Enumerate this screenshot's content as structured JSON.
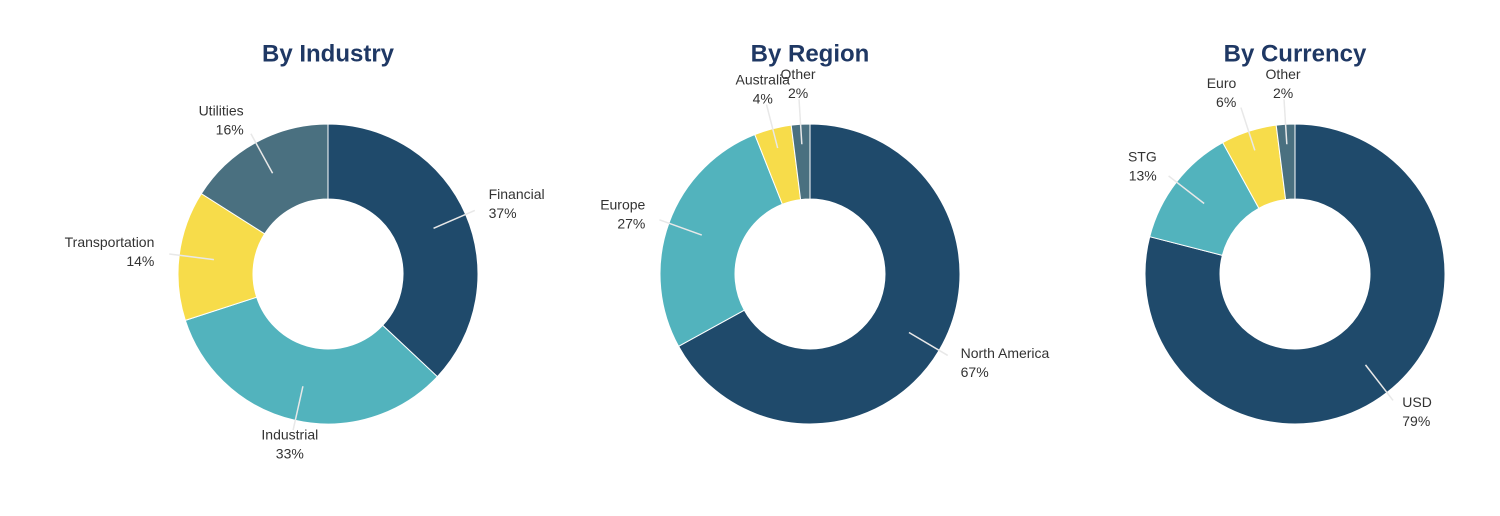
{
  "chart_data": [
    {
      "type": "donut",
      "title": "By Industry",
      "categories": [
        "Financial",
        "Industrial",
        "Transportation",
        "Utilities"
      ],
      "values": [
        37,
        33,
        14,
        16
      ],
      "value_labels": [
        "37%",
        "33%",
        "14%",
        "16%"
      ],
      "colors": [
        "#1f4a6b",
        "#52b3bd",
        "#f7dc4a",
        "#4a7080"
      ]
    },
    {
      "type": "donut",
      "title": "By Region",
      "categories": [
        "North America",
        "Europe",
        "Australia",
        "Other"
      ],
      "values": [
        67,
        27,
        4,
        2
      ],
      "value_labels": [
        "67%",
        "27%",
        "4%",
        "2%"
      ],
      "colors": [
        "#1f4a6b",
        "#52b3bd",
        "#f7dc4a",
        "#4a7080"
      ]
    },
    {
      "type": "donut",
      "title": "By Currency",
      "categories": [
        "USD",
        "STG",
        "Euro",
        "Other"
      ],
      "values": [
        79,
        13,
        6,
        2
      ],
      "value_labels": [
        "79%",
        "13%",
        "6%",
        "2%"
      ],
      "colors": [
        "#1f4a6b",
        "#52b3bd",
        "#f7dc4a",
        "#4a7080"
      ]
    }
  ]
}
